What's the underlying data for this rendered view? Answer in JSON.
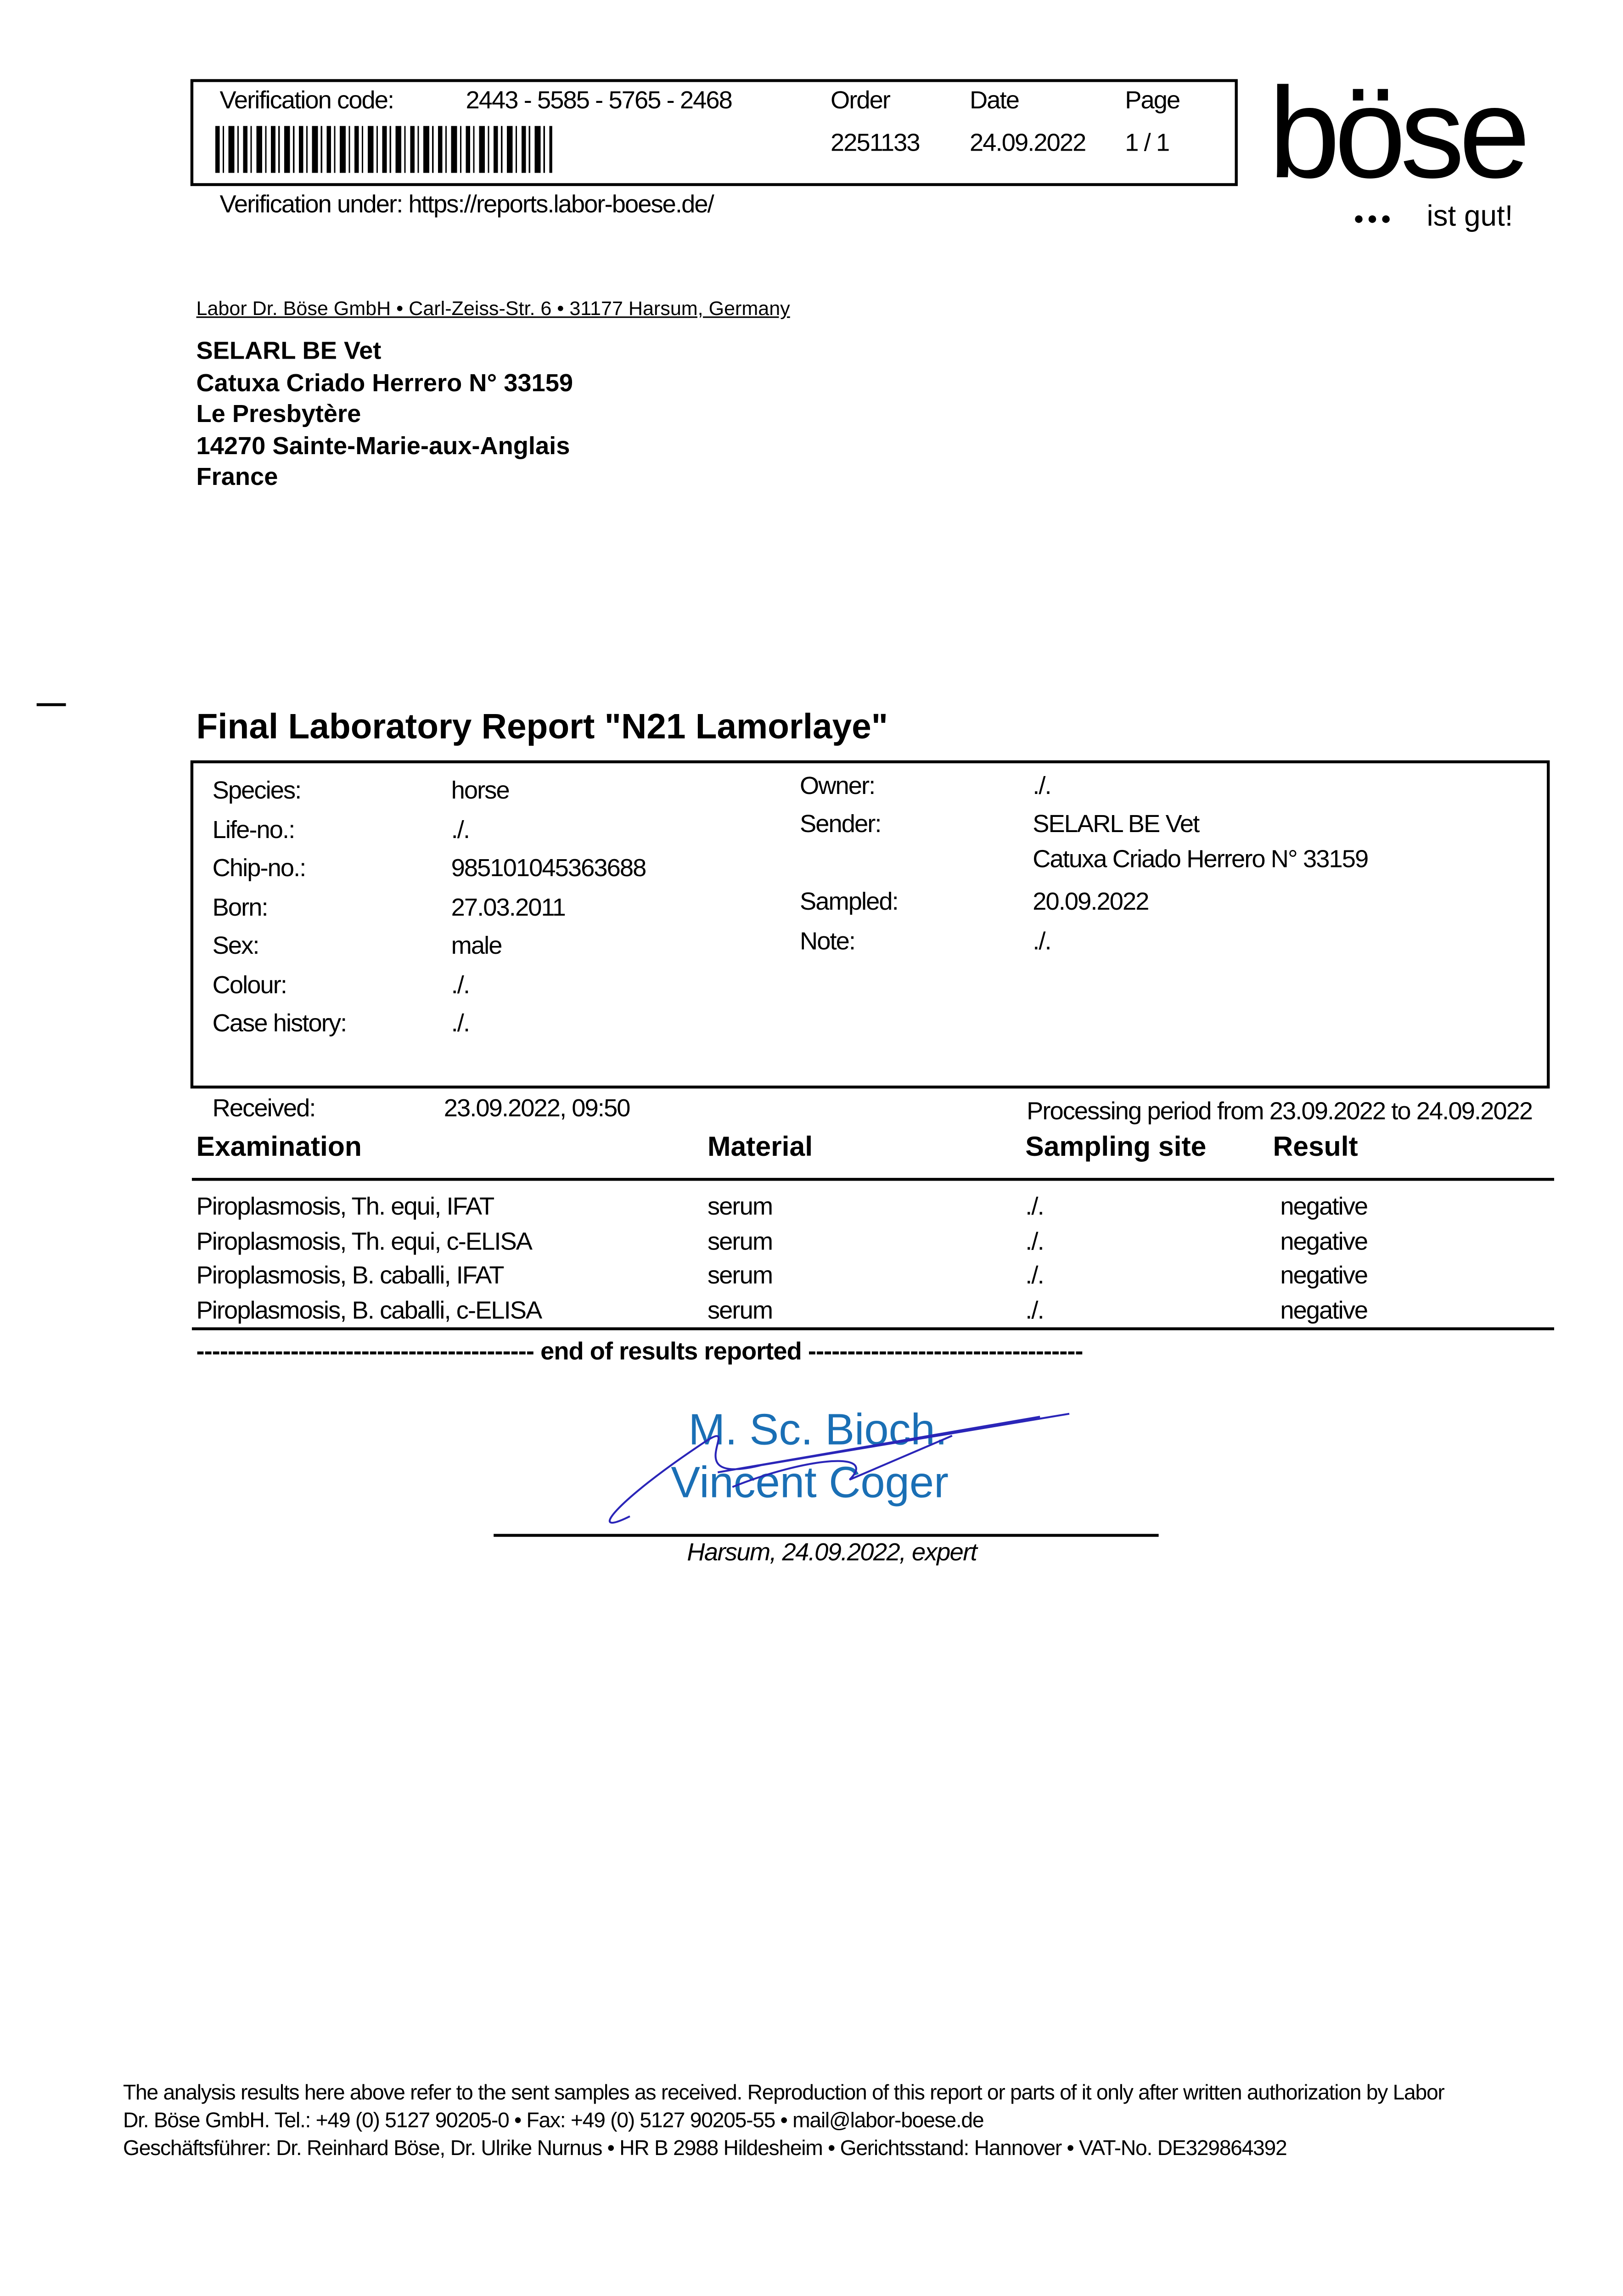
{
  "header": {
    "verification_label": "Verification code:",
    "verification_code": "2443 - 5585 - 5765 - 2468",
    "order_label": "Order",
    "order_value": "2251133",
    "date_label": "Date",
    "date_value": "24.09.2022",
    "page_label": "Page",
    "page_value": "1 / 1",
    "verification_url_text": "Verification under: https://reports.labor-boese.de/",
    "logo_text": "böse",
    "logo_tagline": "ist gut!"
  },
  "sender_line": "Labor Dr. Böse GmbH • Carl-Zeiss-Str. 6 • 31177 Harsum, Germany",
  "recipient": [
    "SELARL BE Vet",
    "Catuxa Criado Herrero N° 33159",
    "Le Presbytère",
    "14270 Sainte-Marie-aux-Anglais",
    "France"
  ],
  "title": "Final Laboratory Report \"N21 Lamorlaye\"",
  "patient": {
    "species_label": "Species:",
    "species": "horse",
    "life_label": "Life-no.:",
    "life": "./.",
    "chip_label": "Chip-no.:",
    "chip": "985101045363688",
    "born_label": "Born:",
    "born": "27.03.2011",
    "sex_label": "Sex:",
    "sex": "male",
    "colour_label": "Colour:",
    "colour": "./.",
    "history_label": "Case history:",
    "history": "./.",
    "owner_label": "Owner:",
    "owner": "./.",
    "sender_label": "Sender:",
    "sender1": "SELARL BE Vet",
    "sender2": "Catuxa Criado Herrero N° 33159",
    "sampled_label": "Sampled:",
    "sampled": "20.09.2022",
    "note_label": "Note:",
    "note": "./."
  },
  "received_label": "Received:",
  "received": "23.09.2022, 09:50",
  "processing": "Processing period from 23.09.2022 to 24.09.2022",
  "table": {
    "headers": [
      "Examination",
      "Material",
      "Sampling site",
      "Result"
    ],
    "rows": [
      [
        "Piroplasmosis, Th. equi, IFAT",
        "serum",
        "./.",
        "negative"
      ],
      [
        "Piroplasmosis, Th. equi, c-ELISA",
        "serum",
        "./.",
        "negative"
      ],
      [
        "Piroplasmosis, B. caballi, IFAT",
        "serum",
        "./.",
        "negative"
      ],
      [
        "Piroplasmosis, B. caballi, c-ELISA",
        "serum",
        "./.",
        "negative"
      ]
    ]
  },
  "end_line": "------------------------------------------- end of results reported -----------------------------------",
  "signature": {
    "line1": "M. Sc. Bioch.",
    "line2": "Vincent Coger",
    "caption": "Harsum, 24.09.2022, expert"
  },
  "footer": [
    "The analysis results here above refer to the sent samples as received. Reproduction of this report or parts of it only after written authorization by Labor",
    "Dr. Böse GmbH. Tel.: +49 (0) 5127 90205-0 • Fax: +49 (0) 5127 90205-55 • mail@labor-boese.de",
    "Geschäftsführer: Dr. Reinhard Böse, Dr. Ulrike Nurnus • HR B 2988 Hildesheim • Gerichtsstand: Hannover • VAT-No. DE329864392"
  ]
}
